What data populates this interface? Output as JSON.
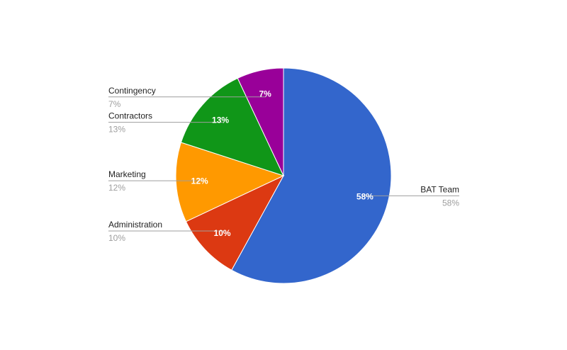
{
  "chart_data": {
    "type": "pie",
    "title": "",
    "slices": [
      {
        "name": "BAT Team",
        "value": 58,
        "label": "58%",
        "legend_value": "58%",
        "color": "#3366cc"
      },
      {
        "name": "Administration",
        "value": 10,
        "label": "10%",
        "legend_value": "10%",
        "color": "#dc3912"
      },
      {
        "name": "Marketing",
        "value": 12,
        "label": "12%",
        "legend_value": "12%",
        "color": "#ff9900"
      },
      {
        "name": "Contractors",
        "value": 13,
        "label": "13%",
        "legend_value": "13%",
        "color": "#109618"
      },
      {
        "name": "Contingency",
        "value": 7,
        "label": "7%",
        "legend_value": "7%",
        "color": "#990099"
      }
    ],
    "start_angle_deg": 0,
    "direction": "clockwise",
    "legend": "labeled"
  }
}
